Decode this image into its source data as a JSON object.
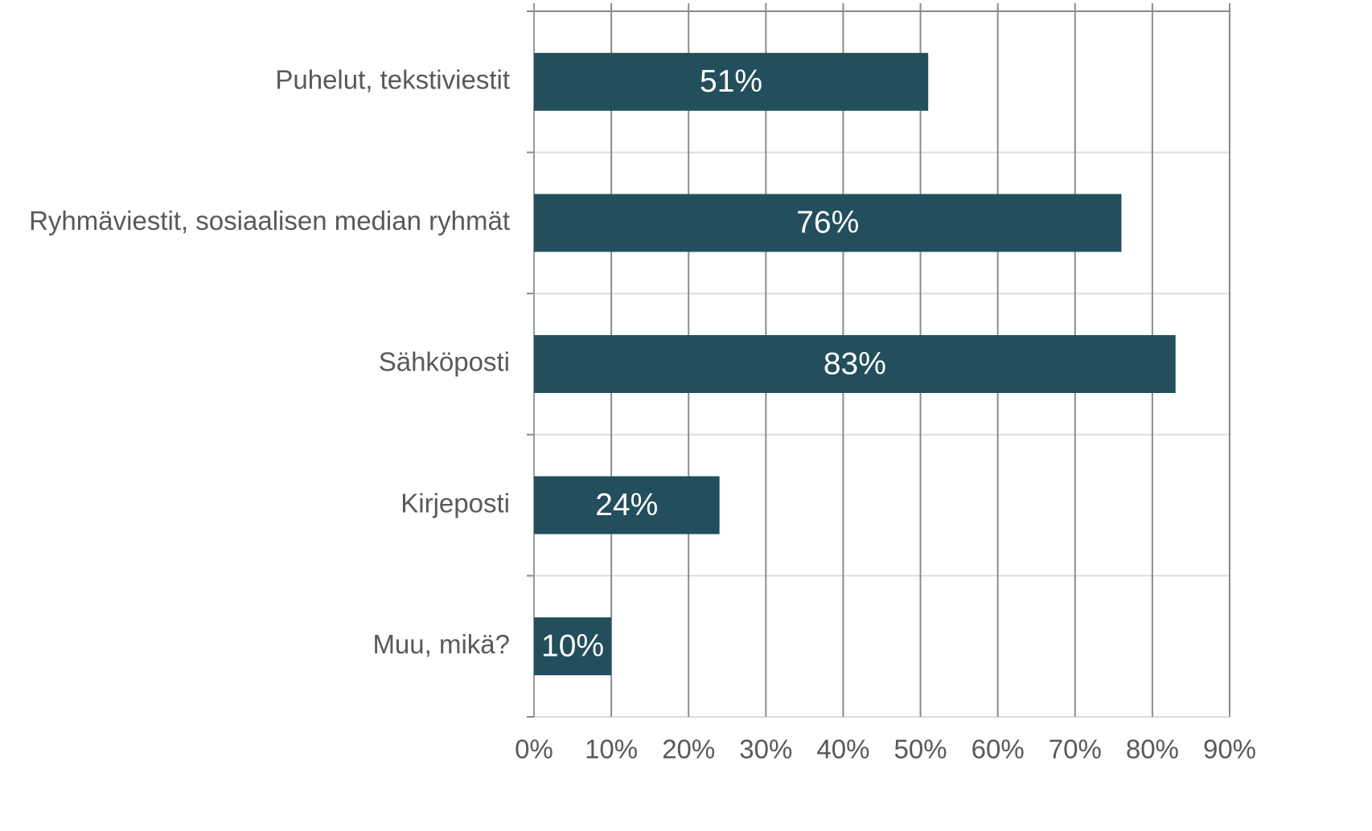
{
  "chart_data": {
    "type": "bar",
    "orientation": "horizontal",
    "categories": [
      "Puhelut, tekstiviestit",
      "Ryhmäviestit, sosiaalisen median ryhmät",
      "Sähköposti",
      "Kirjeposti",
      "Muu, mikä?"
    ],
    "values": [
      51,
      76,
      83,
      24,
      10
    ],
    "value_labels": [
      "51%",
      "76%",
      "83%",
      "24%",
      "10%"
    ],
    "color": "#234e5c",
    "xlim": [
      0,
      90
    ],
    "xticks": [
      {
        "value": 0,
        "label": "0%"
      },
      {
        "value": 10,
        "label": "10%"
      },
      {
        "value": 20,
        "label": "20%"
      },
      {
        "value": 30,
        "label": "30%"
      },
      {
        "value": 40,
        "label": "40%"
      },
      {
        "value": 50,
        "label": "50%"
      },
      {
        "value": 60,
        "label": "60%"
      },
      {
        "value": 70,
        "label": "70%"
      },
      {
        "value": 80,
        "label": "80%"
      },
      {
        "value": 90,
        "label": "90%"
      }
    ],
    "grid": true
  }
}
